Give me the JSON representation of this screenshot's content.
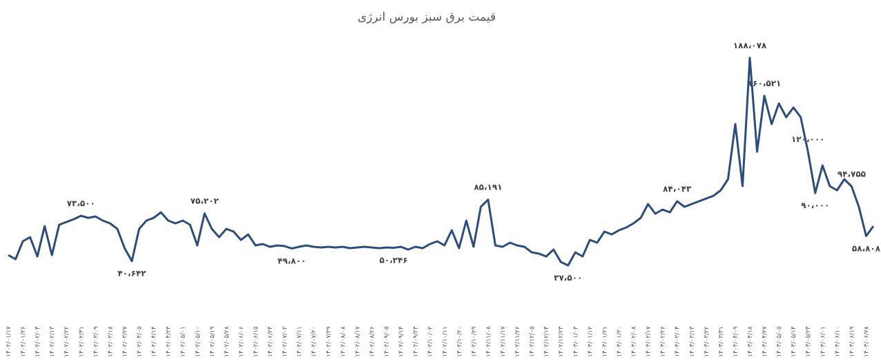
{
  "chart_data": {
    "type": "line",
    "title": "قیمت برق سبز بورس انرژی",
    "color": "#2b4c7e",
    "ylim": [
      30000,
      200000
    ],
    "grid": false,
    "categories": [
      "۱۴۰۲/۰۱/۱۷",
      null,
      "۱۴۰۲/۰۱/۲۶",
      null,
      "۱۴۰۲/۰۲/۰۴",
      null,
      "۱۴۰۲/۰۲/۱۳",
      null,
      "۱۴۰۲/۰۲/۲۲",
      null,
      "۱۴۰۲/۰۲/۳۱",
      null,
      "۱۴۰۲/۰۳/۰۹",
      null,
      "۱۴۰۲/۰۳/۱۸",
      null,
      "۱۴۰۲/۰۳/۲۷",
      null,
      "۱۴۰۲/۰۴/۰۵",
      null,
      "۱۴۰۲/۰۴/۱۴",
      null,
      "۱۴۰۲/۰۴/۲۳",
      null,
      "۱۴۰۲/۰۵/۰۱",
      null,
      "۱۴۰۲/۰۵/۱۰",
      null,
      "۱۴۰۲/۰۵/۱۹",
      null,
      "۱۴۰۲/۰۵/۲۸",
      null,
      "۱۴۰۲/۰۶/۰۶",
      null,
      "۱۴۰۲/۰۶/۱۵",
      null,
      "۱۴۰۲/۰۶/۲۴",
      null,
      "۱۴۰۲/۰۷/۰۲",
      null,
      "۱۴۰۲/۰۷/۱۱",
      null,
      "۱۴۰۲/۰۷/۲۰",
      null,
      "۱۴۰۲/۰۷/۲۹",
      null,
      "۱۴۰۲/۰۸/۰۸",
      null,
      "۱۴۰۲/۰۸/۱۷",
      null,
      "۱۴۰۲/۰۸/۲۶",
      null,
      "۱۴۰۲/۰۹/۰۵",
      null,
      "۱۴۰۲/۰۹/۱۴",
      null,
      "۱۴۰۲/۰۹/۲۳",
      null,
      "۱۴۰۲/۱۰/۰۲",
      null,
      "۱۴۰۲/۱۰/۱۱",
      null,
      "۱۴۰۲/۱۰/۲۰",
      null,
      "۱۴۰۲/۱۰/۲۹",
      null,
      "۱۴۰۲/۱۱/۰۸",
      null,
      "۱۴۰۲/۱۱/۱۷",
      null,
      "۱۴۰۲/۱۱/۲۶",
      null,
      "۱۴۰۲/۱۲/۰۵",
      null,
      "۱۴۰۲/۱۲/۱۴",
      null,
      "۱۴۰۲/۱۲/۲۳",
      null,
      "۱۴۰۳/۰۱/۰۳",
      null,
      "۱۴۰۳/۰۱/۱۲",
      null,
      "۱۴۰۳/۰۱/۲۱",
      null,
      "۱۴۰۳/۰۱/۳۰",
      null,
      "۱۴۰۳/۰۲/۰۸",
      null,
      "۱۴۰۳/۰۲/۱۷",
      null,
      "۱۴۰۳/۰۲/۲۶",
      null,
      "۱۴۰۳/۰۳/۰۴",
      null,
      "۱۴۰۳/۰۳/۱۳",
      null,
      "۱۴۰۳/۰۳/۲۲",
      null,
      "۱۴۰۳/۰۳/۳۱",
      null,
      "۱۴۰۳/۰۴/۰۹",
      null,
      "۱۴۰۳/۰۴/۱۸",
      null,
      "۱۴۰۳/۰۴/۲۷",
      null,
      "۱۴۰۳/۰۵/۰۵",
      null,
      "۱۴۰۳/۰۵/۱۴",
      null,
      "۱۴۰۳/۰۵/۲۳",
      null,
      "۱۴۰۳/۰۶/۰۱",
      null,
      "۱۴۰۳/۰۶/۱۰",
      null,
      "۱۴۰۳/۰۶/۱۹",
      null,
      "۱۴۰۳/۰۶/۲۸",
      null
    ],
    "values": [
      45000,
      42000,
      55000,
      58000,
      44000,
      66000,
      45000,
      67000,
      69000,
      71000,
      73500,
      72000,
      73000,
      70000,
      68000,
      64000,
      50000,
      40642,
      64000,
      70000,
      72000,
      76000,
      70000,
      68000,
      70000,
      67000,
      52000,
      75202,
      64000,
      58000,
      64000,
      62000,
      56000,
      60000,
      52000,
      53000,
      51000,
      52000,
      51500,
      49800,
      51000,
      52000,
      51000,
      50500,
      51000,
      50500,
      51000,
      50000,
      50500,
      51000,
      50500,
      50000,
      50500,
      50246,
      51000,
      49000,
      51000,
      50000,
      53000,
      55000,
      52000,
      63000,
      50000,
      70000,
      51000,
      80000,
      85191,
      52000,
      51000,
      54000,
      52000,
      51000,
      47000,
      46000,
      44000,
      49000,
      40000,
      37500,
      47000,
      44000,
      56000,
      54000,
      62000,
      60000,
      63000,
      65000,
      68000,
      72000,
      82000,
      75000,
      78000,
      76000,
      84043,
      80000,
      82000,
      84000,
      86000,
      88000,
      92000,
      100000,
      140000,
      95000,
      188078,
      120000,
      160521,
      140000,
      155000,
      145000,
      152000,
      145000,
      120000,
      90000,
      110000,
      95000,
      92000,
      100000,
      94755,
      80000,
      58808,
      66000
    ],
    "value_labels": [
      null,
      null,
      null,
      null,
      null,
      null,
      null,
      null,
      null,
      null,
      "۷۳،۵۰۰",
      null,
      null,
      null,
      null,
      null,
      null,
      "۴۰،۶۴۲",
      null,
      null,
      null,
      null,
      null,
      null,
      null,
      null,
      null,
      "۷۵،۲۰۲",
      null,
      null,
      null,
      null,
      null,
      null,
      null,
      null,
      null,
      null,
      null,
      "۴۹،۸۰۰",
      null,
      null,
      null,
      null,
      null,
      null,
      null,
      null,
      null,
      null,
      null,
      null,
      null,
      "۵۰،۲۴۶",
      null,
      null,
      null,
      null,
      null,
      null,
      null,
      null,
      null,
      null,
      null,
      null,
      "۸۵،۱۹۱",
      null,
      null,
      null,
      null,
      null,
      null,
      null,
      null,
      null,
      null,
      "۳۷،۵۰۰",
      null,
      null,
      null,
      null,
      null,
      null,
      null,
      null,
      null,
      null,
      null,
      null,
      null,
      null,
      "۸۴،۰۴۳",
      null,
      null,
      null,
      null,
      null,
      null,
      null,
      null,
      null,
      "۱۸۸،۰۷۸",
      null,
      "۱۶۰،۵۲۱",
      null,
      null,
      null,
      null,
      null,
      "۱۲۰،۰۰۰",
      "۹۰،۰۰۰",
      null,
      null,
      null,
      null,
      "۹۴،۷۵۵",
      null,
      "۵۸،۸۰۸",
      null
    ]
  }
}
